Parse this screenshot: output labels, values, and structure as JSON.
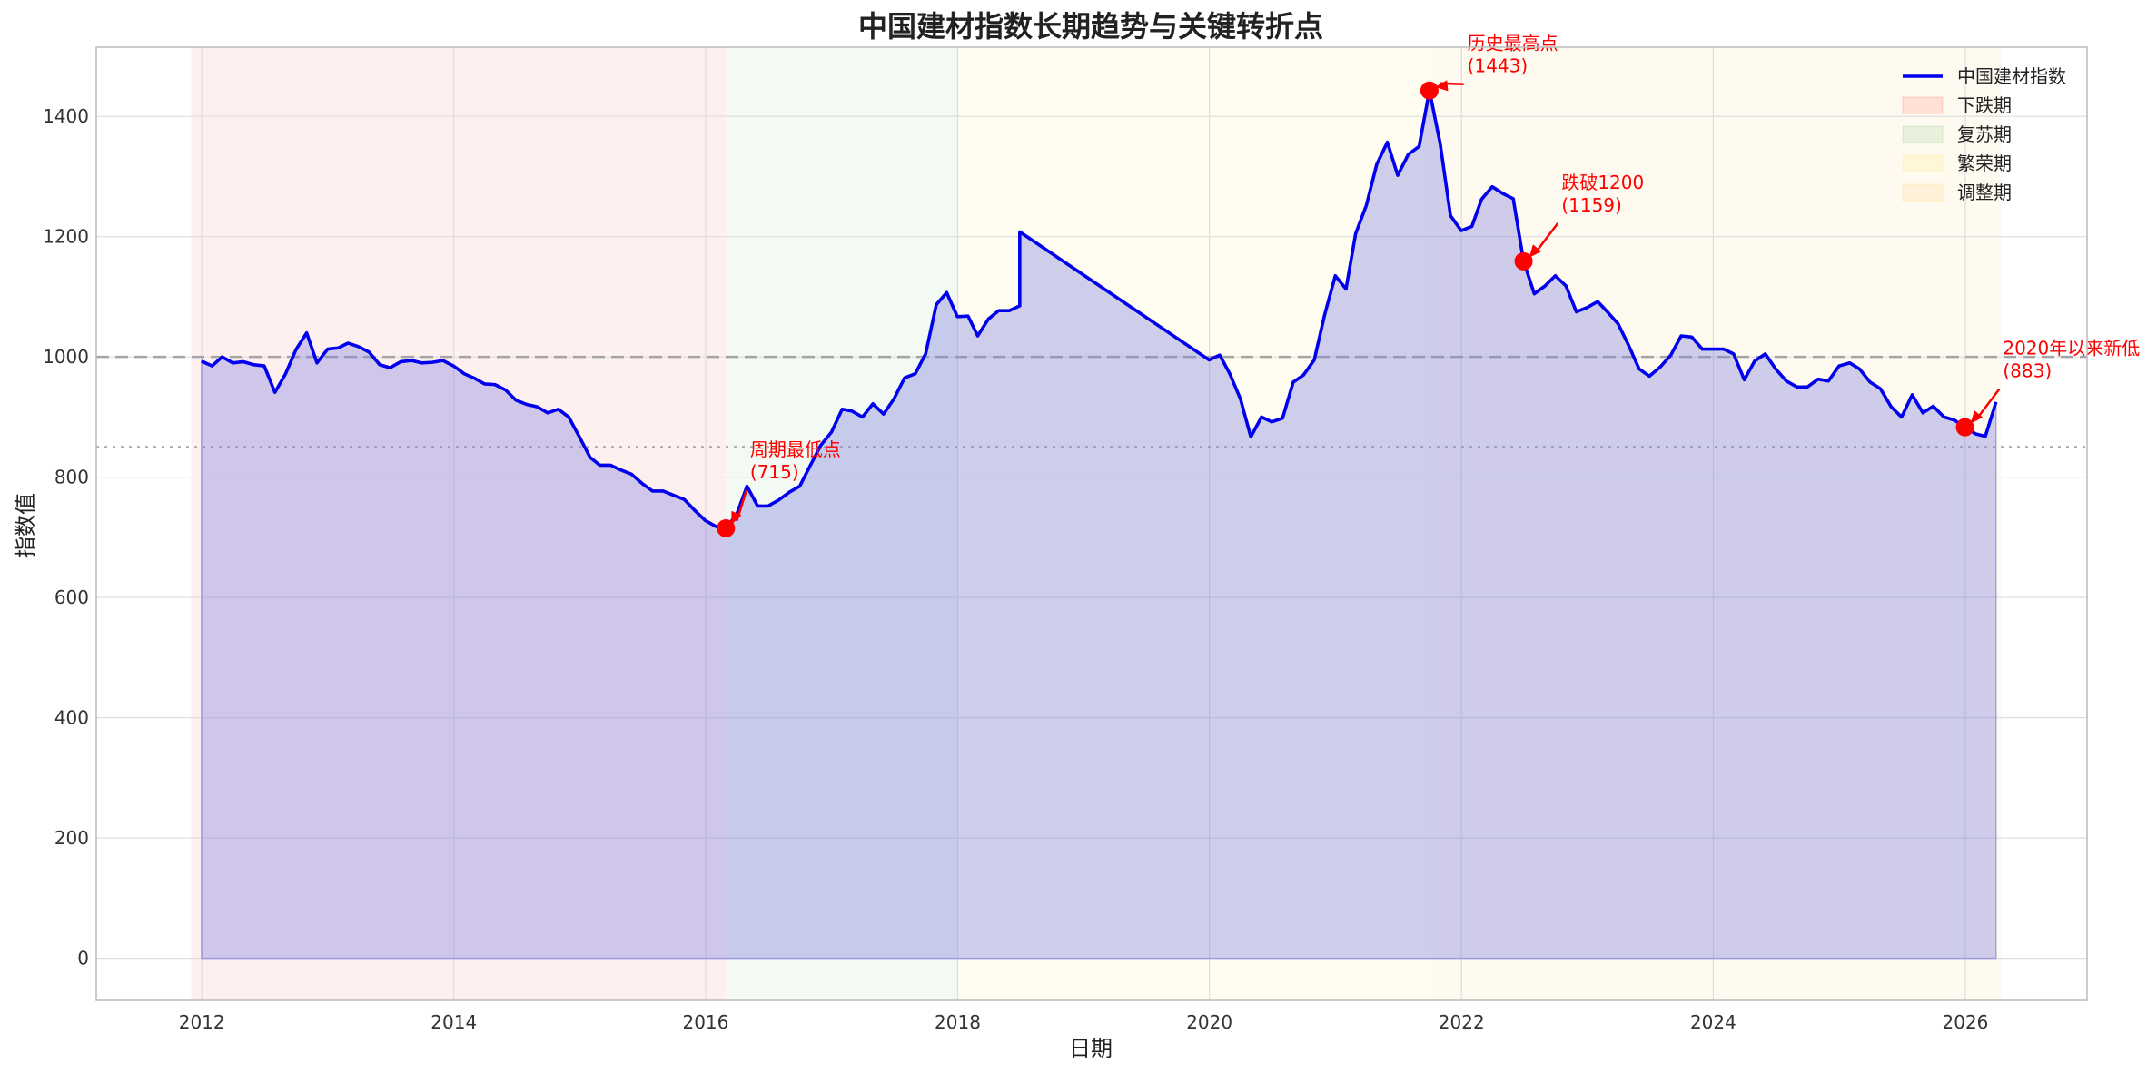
{
  "chart_data": {
    "type": "line",
    "title": "中国建材指数长期趋势与关键转折点",
    "xlabel": "日期",
    "ylabel": "指数值",
    "xlim": [
      "2011-03-01",
      "2026-12-20"
    ],
    "ylim": [
      -70,
      1515
    ],
    "x_ticks": [
      "2012",
      "2014",
      "2016",
      "2018",
      "2020",
      "2022",
      "2024",
      "2026"
    ],
    "y_ticks": [
      0,
      200,
      400,
      600,
      800,
      1000,
      1200,
      1400
    ],
    "grid": true,
    "legend_position": "top-right",
    "colors": {
      "line": "#0000ee",
      "fill": "#8080e0",
      "marker": "#ff0000",
      "decline": "#ff0000",
      "recovery": "#2ca02c",
      "boom": "#ffd700",
      "adjust": "#ffa500",
      "ref_line": "#999999"
    },
    "series": [
      {
        "name": "中国建材指数",
        "points": [
          [
            "2011-12-31",
            993
          ],
          [
            "2012-01-31",
            985
          ],
          [
            "2012-02-29",
            1000
          ],
          [
            "2012-03-31",
            990
          ],
          [
            "2012-04-30",
            992
          ],
          [
            "2012-05-31",
            987
          ],
          [
            "2012-06-30",
            985
          ],
          [
            "2012-07-31",
            941
          ],
          [
            "2012-08-31",
            972
          ],
          [
            "2012-09-30",
            1012
          ],
          [
            "2012-10-31",
            1040
          ],
          [
            "2012-11-30",
            990
          ],
          [
            "2012-12-31",
            1013
          ],
          [
            "2013-01-31",
            1015
          ],
          [
            "2013-02-28",
            1023
          ],
          [
            "2013-03-31",
            1017
          ],
          [
            "2013-04-30",
            1008
          ],
          [
            "2013-05-31",
            987
          ],
          [
            "2013-06-30",
            982
          ],
          [
            "2013-07-31",
            992
          ],
          [
            "2013-08-31",
            994
          ],
          [
            "2013-09-30",
            990
          ],
          [
            "2013-10-31",
            991
          ],
          [
            "2013-11-30",
            994
          ],
          [
            "2013-12-31",
            985
          ],
          [
            "2014-01-31",
            972
          ],
          [
            "2014-02-28",
            965
          ],
          [
            "2014-03-31",
            955
          ],
          [
            "2014-04-30",
            954
          ],
          [
            "2014-05-31",
            945
          ],
          [
            "2014-06-30",
            928
          ],
          [
            "2014-07-31",
            921
          ],
          [
            "2014-08-31",
            917
          ],
          [
            "2014-09-30",
            907
          ],
          [
            "2014-10-31",
            913
          ],
          [
            "2014-11-30",
            900
          ],
          [
            "2014-12-31",
            867
          ],
          [
            "2015-01-31",
            833
          ],
          [
            "2015-02-28",
            820
          ],
          [
            "2015-03-31",
            820
          ],
          [
            "2015-04-30",
            812
          ],
          [
            "2015-05-31",
            805
          ],
          [
            "2015-06-30",
            790
          ],
          [
            "2015-07-31",
            777
          ],
          [
            "2015-08-31",
            777
          ],
          [
            "2015-09-30",
            770
          ],
          [
            "2015-10-31",
            763
          ],
          [
            "2015-11-30",
            745
          ],
          [
            "2015-12-31",
            728
          ],
          [
            "2016-01-31",
            718
          ],
          [
            "2016-02-29",
            715
          ],
          [
            "2016-03-31",
            738
          ],
          [
            "2016-04-30",
            785
          ],
          [
            "2016-05-31",
            752
          ],
          [
            "2016-06-30",
            752
          ],
          [
            "2016-07-31",
            762
          ],
          [
            "2016-08-31",
            775
          ],
          [
            "2016-09-30",
            785
          ],
          [
            "2016-10-31",
            820
          ],
          [
            "2016-11-30",
            853
          ],
          [
            "2016-12-31",
            875
          ],
          [
            "2017-01-31",
            913
          ],
          [
            "2017-02-28",
            910
          ],
          [
            "2017-03-31",
            900
          ],
          [
            "2017-04-30",
            922
          ],
          [
            "2017-05-31",
            905
          ],
          [
            "2017-06-30",
            930
          ],
          [
            "2017-07-31",
            965
          ],
          [
            "2017-08-31",
            972
          ],
          [
            "2017-09-30",
            1005
          ],
          [
            "2017-10-31",
            1087
          ],
          [
            "2017-11-30",
            1107
          ],
          [
            "2017-12-31",
            1067
          ],
          [
            "2018-01-31",
            1068
          ],
          [
            "2018-02-28",
            1035
          ],
          [
            "2018-03-31",
            1063
          ],
          [
            "2018-04-30",
            1077
          ],
          [
            "2018-05-31",
            1077
          ],
          [
            "2018-06-30",
            1085
          ],
          [
            "2018-06-30",
            1208
          ],
          [
            "2019-12-31",
            995
          ],
          [
            "2020-01-31",
            1003
          ],
          [
            "2020-02-29",
            972
          ],
          [
            "2020-03-31",
            930
          ],
          [
            "2020-04-30",
            867
          ],
          [
            "2020-05-31",
            900
          ],
          [
            "2020-06-30",
            892
          ],
          [
            "2020-07-31",
            898
          ],
          [
            "2020-08-31",
            958
          ],
          [
            "2020-09-30",
            970
          ],
          [
            "2020-10-31",
            995
          ],
          [
            "2020-11-30",
            1070
          ],
          [
            "2020-12-31",
            1135
          ],
          [
            "2021-01-31",
            1113
          ],
          [
            "2021-02-28",
            1205
          ],
          [
            "2021-03-31",
            1252
          ],
          [
            "2021-04-30",
            1320
          ],
          [
            "2021-05-31",
            1357
          ],
          [
            "2021-06-30",
            1302
          ],
          [
            "2021-07-31",
            1337
          ],
          [
            "2021-08-31",
            1350
          ],
          [
            "2021-09-30",
            1443
          ],
          [
            "2021-10-31",
            1355
          ],
          [
            "2021-11-30",
            1235
          ],
          [
            "2021-12-31",
            1210
          ],
          [
            "2022-01-31",
            1217
          ],
          [
            "2022-02-28",
            1262
          ],
          [
            "2022-03-31",
            1283
          ],
          [
            "2022-04-30",
            1272
          ],
          [
            "2022-05-31",
            1263
          ],
          [
            "2022-06-30",
            1159
          ],
          [
            "2022-07-31",
            1105
          ],
          [
            "2022-08-31",
            1118
          ],
          [
            "2022-09-30",
            1135
          ],
          [
            "2022-10-31",
            1118
          ],
          [
            "2022-11-30",
            1075
          ],
          [
            "2022-12-31",
            1082
          ],
          [
            "2023-01-31",
            1092
          ],
          [
            "2023-02-28",
            1075
          ],
          [
            "2023-03-31",
            1055
          ],
          [
            "2023-04-30",
            1020
          ],
          [
            "2023-05-31",
            980
          ],
          [
            "2023-06-30",
            968
          ],
          [
            "2023-07-31",
            983
          ],
          [
            "2023-08-31",
            1003
          ],
          [
            "2023-09-30",
            1035
          ],
          [
            "2023-10-31",
            1033
          ],
          [
            "2023-11-30",
            1013
          ],
          [
            "2023-12-31",
            1013
          ],
          [
            "2024-01-31",
            1013
          ],
          [
            "2024-02-29",
            1005
          ],
          [
            "2024-03-31",
            962
          ],
          [
            "2024-04-30",
            993
          ],
          [
            "2024-05-31",
            1005
          ],
          [
            "2024-06-30",
            980
          ],
          [
            "2024-07-31",
            960
          ],
          [
            "2024-08-31",
            950
          ],
          [
            "2024-09-30",
            950
          ],
          [
            "2024-10-31",
            963
          ],
          [
            "2024-11-30",
            960
          ],
          [
            "2024-12-31",
            985
          ],
          [
            "2025-01-31",
            990
          ],
          [
            "2025-02-28",
            980
          ],
          [
            "2025-03-31",
            958
          ],
          [
            "2025-04-30",
            947
          ],
          [
            "2025-05-31",
            917
          ],
          [
            "2025-06-30",
            900
          ],
          [
            "2025-07-31",
            937
          ],
          [
            "2025-08-31",
            907
          ],
          [
            "2025-09-30",
            918
          ],
          [
            "2025-10-31",
            900
          ],
          [
            "2025-11-30",
            895
          ],
          [
            "2025-12-31",
            883
          ],
          [
            "2026-01-31",
            872
          ],
          [
            "2026-02-28",
            868
          ],
          [
            "2026-03-31",
            925
          ]
        ]
      }
    ],
    "phases": [
      {
        "name": "下跌期",
        "start": "2011-12-01",
        "end": "2016-02-29",
        "color": "#ff0000"
      },
      {
        "name": "复苏期",
        "start": "2016-02-29",
        "end": "2018-01-01",
        "color": "#2ca02c"
      },
      {
        "name": "繁荣期",
        "start": "2018-01-01",
        "end": "2021-09-30",
        "color": "#ffd700"
      },
      {
        "name": "调整期",
        "start": "2021-09-30",
        "end": "2026-04-15",
        "color": "#ffa500"
      }
    ],
    "reference_lines": [
      {
        "y": 1000,
        "style": "dashed"
      },
      {
        "y": 850,
        "style": "dotted"
      }
    ],
    "annotations": [
      {
        "x": "2016-02-29",
        "y": 715,
        "label": "周期最低点",
        "value": "(715)",
        "dx_days": 70,
        "dy": 80
      },
      {
        "x": "2021-09-30",
        "y": 1443,
        "label": "历史最高点",
        "value": "(1443)",
        "dx_days": 110,
        "dy": 45
      },
      {
        "x": "2022-06-30",
        "y": 1159,
        "label": "跌破1200",
        "value": "(1159)",
        "dx_days": 110,
        "dy": 80
      },
      {
        "x": "2025-12-31",
        "y": 883,
        "label": "2020年以来新低",
        "value": "(883)",
        "dx_days": 110,
        "dy": 80
      }
    ]
  }
}
